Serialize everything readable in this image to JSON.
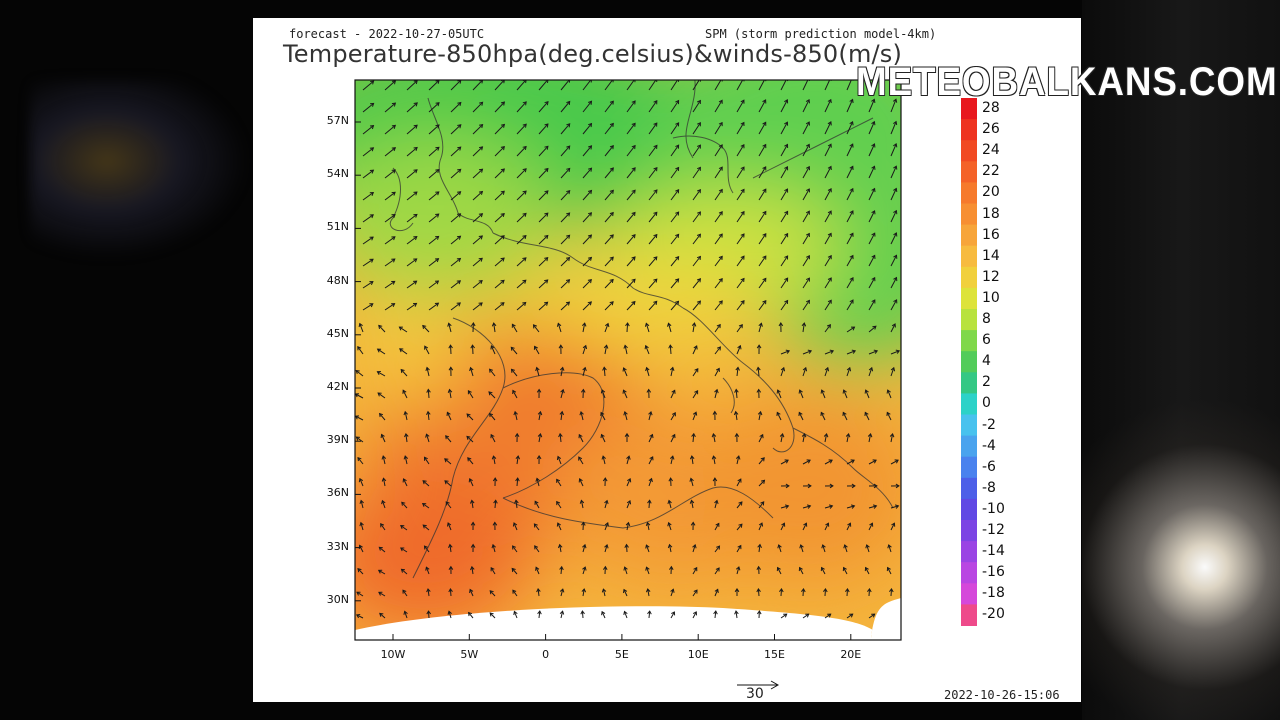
{
  "header": {
    "forecast_label": "forecast - 2022-10-27-05UTC",
    "model_label": "SPM (storm prediction model-4km)",
    "title": "Temperature-850hpa(deg.celsius)&winds-850(m/s)"
  },
  "watermark": "METEOBALKANS.COM",
  "footer": {
    "timestamp": "2022-10-26-15:06",
    "wind_scale_label": "30"
  },
  "map": {
    "lat_labels": [
      "57N",
      "54N",
      "51N",
      "48N",
      "45N",
      "42N",
      "39N",
      "36N",
      "33N",
      "30N"
    ],
    "lon_labels": [
      "10W",
      "5W",
      "0",
      "5E",
      "10E",
      "15E",
      "20E"
    ]
  },
  "colorbar": {
    "labels": [
      "28",
      "26",
      "24",
      "22",
      "20",
      "18",
      "16",
      "14",
      "12",
      "10",
      "8",
      "6",
      "4",
      "2",
      "0",
      "-2",
      "-4",
      "-6",
      "-8",
      "-10",
      "-12",
      "-14",
      "-16",
      "-18",
      "-20"
    ],
    "colors": [
      "#e8181e",
      "#ee3320",
      "#f14a22",
      "#f46228",
      "#f67a2c",
      "#f78f32",
      "#f7a53a",
      "#f7bb3f",
      "#f1d03c",
      "#dde33a",
      "#b8e23e",
      "#7fd84a",
      "#52cc5a",
      "#34c884",
      "#2cd2c8",
      "#48c2ee",
      "#4aa3ee",
      "#4a82ee",
      "#4d5fe8",
      "#6048e4",
      "#7c44e4",
      "#9a44e4",
      "#b946e2",
      "#d548da",
      "#ee4a8a"
    ]
  },
  "colors": {
    "warm": "#f27b2e",
    "mid": "#f7c23b",
    "cool": "#4ec94e"
  }
}
